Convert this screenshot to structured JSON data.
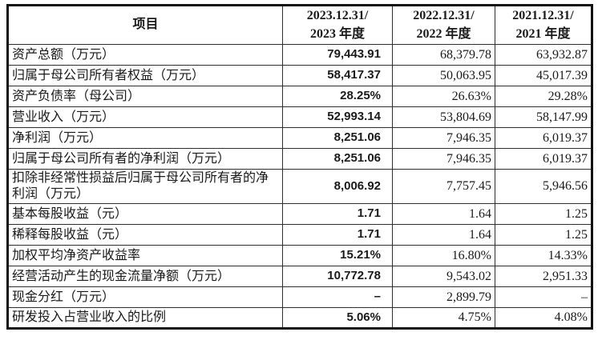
{
  "colors": {
    "background": "#ffffff",
    "text": "#1a1a1a",
    "table_border": "#121212",
    "grid_line": "#2e2e2e"
  },
  "table": {
    "item_header": "项目",
    "columns": [
      {
        "line1": "2023.12.31/",
        "line2": "2023 年度"
      },
      {
        "line1": "2022.12.31/",
        "line2": "2022 年度"
      },
      {
        "line1": "2021.12.31/",
        "line2": "2021 年度"
      }
    ],
    "rows": [
      {
        "label": "资产总额（万元）",
        "v2023": "79,443.91",
        "v2022": "68,379.78",
        "v2021": "63,932.87"
      },
      {
        "label": "归属于母公司所有者权益（万元）",
        "v2023": "58,417.37",
        "v2022": "50,063.95",
        "v2021": "45,017.39"
      },
      {
        "label": "资产负债率（母公司）",
        "v2023": "28.25%",
        "v2022": "26.63%",
        "v2021": "29.28%"
      },
      {
        "label": "营业收入（万元）",
        "v2023": "52,993.14",
        "v2022": "53,804.69",
        "v2021": "58,147.99"
      },
      {
        "label": "净利润（万元）",
        "v2023": "8,251.06",
        "v2022": "7,946.35",
        "v2021": "6,019.37"
      },
      {
        "label": "归属于母公司所有者的净利润（万元）",
        "v2023": "8,251.06",
        "v2022": "7,946.35",
        "v2021": "6,019.37"
      },
      {
        "label": "扣除非经常性损益后归属于母公司所有者的净利润（万元）",
        "v2023": "8,006.92",
        "v2022": "7,757.45",
        "v2021": "5,946.56"
      },
      {
        "label": "基本每股收益（元）",
        "v2023": "1.71",
        "v2022": "1.64",
        "v2021": "1.25"
      },
      {
        "label": "稀释每股收益（元）",
        "v2023": "1.71",
        "v2022": "1.64",
        "v2021": "1.25"
      },
      {
        "label": "加权平均净资产收益率",
        "v2023": "15.21%",
        "v2022": "16.80%",
        "v2021": "14.33%"
      },
      {
        "label": "经营活动产生的现金流量净额（万元）",
        "v2023": "10,772.78",
        "v2022": "9,543.02",
        "v2021": "2,951.33"
      },
      {
        "label": "现金分红（万元）",
        "v2023": "–",
        "v2022": "2,899.79",
        "v2021": "–"
      },
      {
        "label": "研发投入占营业收入的比例",
        "v2023": "5.06%",
        "v2022": "4.75%",
        "v2021": "4.08%"
      }
    ]
  }
}
